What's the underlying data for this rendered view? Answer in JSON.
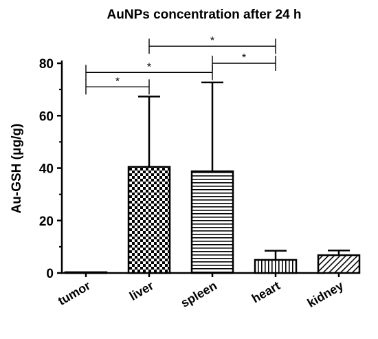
{
  "chart_data": {
    "type": "bar",
    "title": "AuNPs concentration after 24 h",
    "xlabel": "",
    "ylabel": "Au-GSH (μg/g)",
    "ylim": [
      0,
      80
    ],
    "yticks": [
      0,
      20,
      40,
      60,
      80
    ],
    "grid": false,
    "categories": [
      "tumor",
      "liver",
      "spleen",
      "heart",
      "kidney"
    ],
    "values": [
      0.3,
      40.5,
      38.8,
      5.0,
      6.8
    ],
    "error_upper": [
      0.3,
      67.3,
      72.7,
      8.5,
      8.6
    ],
    "fill_patterns": [
      "solid",
      "checkerboard",
      "horizontal-lines",
      "vertical-lines",
      "diagonal-hatch"
    ],
    "significance": [
      {
        "from": "tumor",
        "to": "liver",
        "label": "*",
        "y": 71
      },
      {
        "from": "tumor",
        "to": "spleen",
        "label": "*",
        "y": 76.5
      },
      {
        "from": "spleen",
        "to": "heart",
        "label": "*",
        "y": 80
      },
      {
        "from": "liver",
        "to": "heart",
        "label": "*",
        "y": 86.5
      }
    ]
  }
}
